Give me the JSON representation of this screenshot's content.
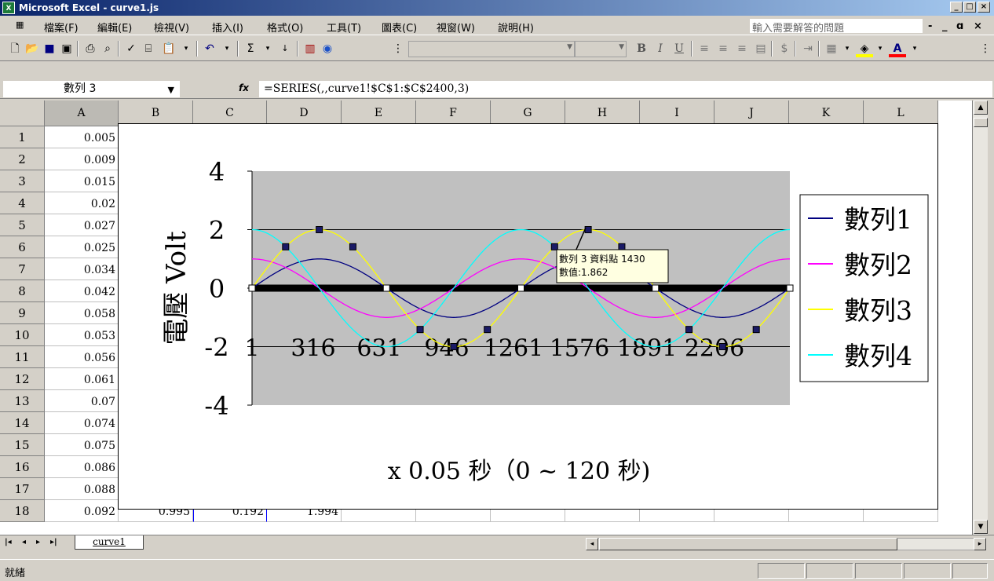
{
  "window": {
    "title": "Microsoft Excel - curve1.js",
    "app_icon": "excel-icon",
    "controls": [
      "_",
      "□",
      "×"
    ]
  },
  "menu": {
    "items": [
      "檔案(F)",
      "編輯(E)",
      "檢視(V)",
      "插入(I)",
      "格式(O)",
      "工具(T)",
      "圖表(C)",
      "視窗(W)",
      "說明(H)"
    ],
    "ask_placeholder": "輸入需要解答的問題",
    "doc_controls": [
      "-",
      "_",
      "ɑ",
      "×"
    ]
  },
  "toolbar": {
    "format_buttons": [
      "B",
      "I",
      "U",
      "$"
    ]
  },
  "formula_bar": {
    "name_box": "數列 3",
    "fx_label": "fx",
    "formula": "=SERIES(,,curve1!$C$1:$C$2400,3)"
  },
  "grid": {
    "columns": [
      "A",
      "B",
      "C",
      "D",
      "E",
      "F",
      "G",
      "H",
      "I",
      "J",
      "K",
      "L"
    ],
    "rows": [
      "1",
      "2",
      "3",
      "4",
      "5",
      "6",
      "7",
      "8",
      "9",
      "10",
      "11",
      "12",
      "13",
      "14",
      "15",
      "16",
      "17",
      "18"
    ],
    "col_a": [
      "0.005",
      "0.009",
      "0.015",
      "0.02",
      "0.027",
      "0.025",
      "0.034",
      "0.042",
      "0.058",
      "0.053",
      "0.056",
      "0.061",
      "0.07",
      "0.074",
      "0.075",
      "0.086",
      "0.088",
      "0.092"
    ],
    "row18": {
      "B": "0.995",
      "C": "0.192",
      "D": "1.994"
    }
  },
  "sheet": {
    "tab": "curve1"
  },
  "status": {
    "text": "就緒"
  },
  "chart_data": {
    "type": "line",
    "ylabel": "電壓 Volt",
    "xlabel": "x 0.05 秒（0 ~ 120 秒)",
    "ylim": [
      -4,
      4
    ],
    "yticks": [
      "4",
      "2",
      "0",
      "-2",
      "-4"
    ],
    "xticks": [
      "1",
      "316",
      "631",
      "946",
      "1261",
      "1576",
      "1891",
      "2206"
    ],
    "x_range": [
      1,
      2400
    ],
    "legend_position": "right",
    "series": [
      {
        "name": "數列1",
        "color": "#000080",
        "amplitude": 1,
        "phase": "sin"
      },
      {
        "name": "數列2",
        "color": "#ff00ff",
        "amplitude": 1,
        "phase": "cos"
      },
      {
        "name": "數列3",
        "color": "#ffff00",
        "amplitude": 2,
        "phase": "sin"
      },
      {
        "name": "數列4",
        "color": "#00ffff",
        "amplitude": 2,
        "phase": "cos"
      }
    ],
    "tooltip": {
      "line1": "數列 3 資料點 1430",
      "line2": "數值:1.862"
    }
  }
}
